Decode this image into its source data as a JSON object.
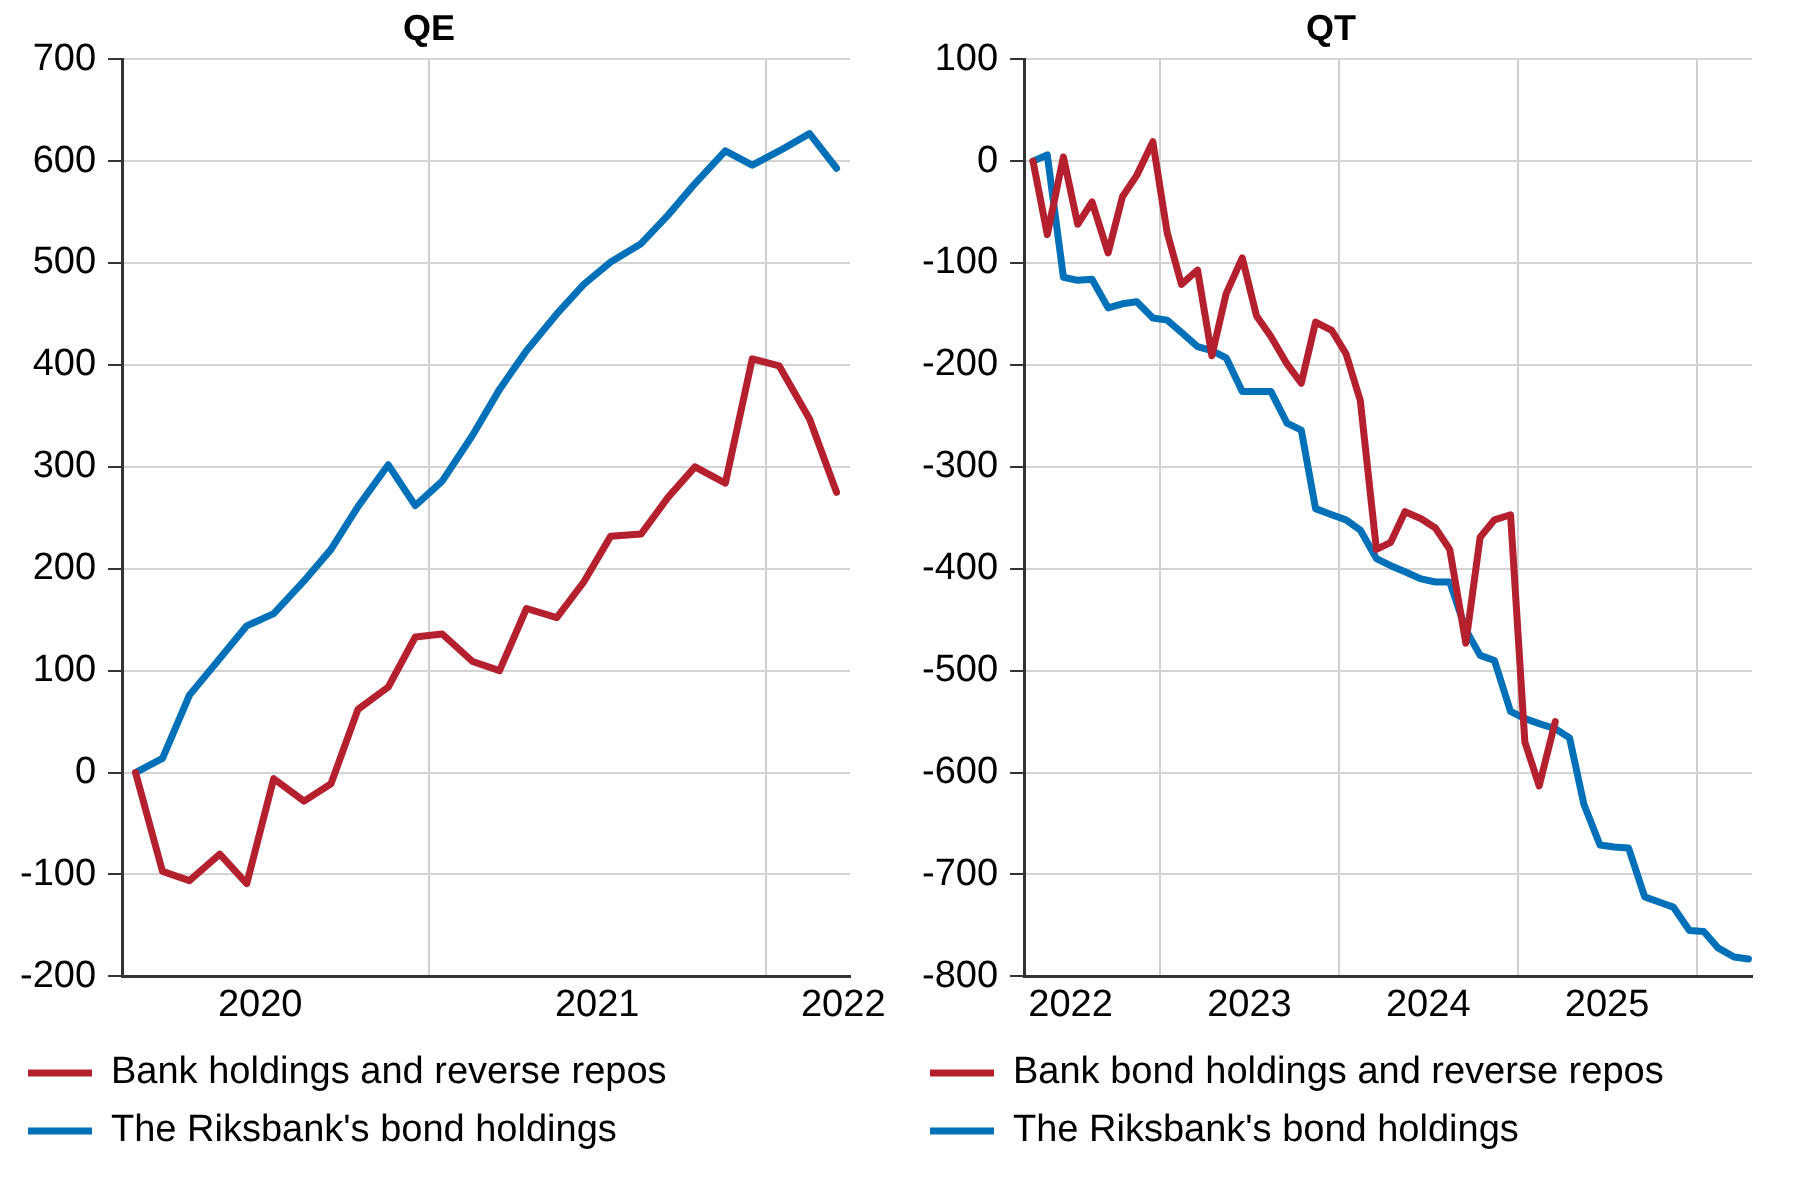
{
  "chart_data": [
    {
      "type": "line",
      "title": "QE",
      "xlim": [
        2020.09,
        2022.25
      ],
      "xticks": [
        {
          "value": 2020.5,
          "label": "2020"
        },
        {
          "value": 2021,
          "label": null
        },
        {
          "value": 2021.5,
          "label": "2021"
        },
        {
          "value": 2022,
          "label": null
        },
        {
          "value": 2022.23,
          "label": "2022"
        }
      ],
      "ylim": [
        -200,
        700
      ],
      "yticks": [
        -200,
        -100,
        0,
        100,
        200,
        300,
        400,
        500,
        600,
        700
      ],
      "grid": true,
      "legend": "bottom",
      "marker": "none",
      "line_style": "solid",
      "series": [
        {
          "name": "Bank holdings and reverse repos",
          "color": "#b5202e",
          "x": [
            2020.13,
            2020.21,
            2020.29,
            2020.38,
            2020.46,
            2020.54,
            2020.63,
            2020.71,
            2020.79,
            2020.88,
            2020.96,
            2021.04,
            2021.13,
            2021.21,
            2021.29,
            2021.38,
            2021.46,
            2021.54,
            2021.63,
            2021.71,
            2021.79,
            2021.88,
            2021.96,
            2022.04,
            2022.13,
            2022.21
          ],
          "values": [
            0,
            -97,
            -106,
            -80,
            -109,
            -6,
            -28,
            -11,
            62,
            84,
            133,
            136,
            109,
            100,
            161,
            152,
            187,
            232,
            234,
            270,
            300,
            284,
            406,
            399,
            347,
            275
          ]
        },
        {
          "name": "The Riksbank's bond holdings",
          "color": "#0070b8",
          "x": [
            2020.13,
            2020.21,
            2020.29,
            2020.38,
            2020.46,
            2020.54,
            2020.63,
            2020.71,
            2020.79,
            2020.88,
            2020.96,
            2021.04,
            2021.13,
            2021.21,
            2021.29,
            2021.38,
            2021.46,
            2021.54,
            2021.63,
            2021.71,
            2021.79,
            2021.88,
            2021.96,
            2022.04,
            2022.13,
            2022.21
          ],
          "values": [
            0,
            14,
            76,
            112,
            144,
            156,
            188,
            219,
            261,
            302,
            262,
            286,
            331,
            376,
            414,
            450,
            479,
            501,
            519,
            547,
            578,
            610,
            596,
            610,
            627,
            593
          ]
        }
      ]
    },
    {
      "type": "line",
      "title": "QT",
      "xlim": [
        2022.24,
        2026.31
      ],
      "xticks": [
        {
          "value": 2022.5,
          "label": "2022"
        },
        {
          "value": 2023,
          "label": null
        },
        {
          "value": 2023.5,
          "label": "2023"
        },
        {
          "value": 2024,
          "label": null
        },
        {
          "value": 2024.5,
          "label": "2024"
        },
        {
          "value": 2025,
          "label": null
        },
        {
          "value": 2025.5,
          "label": "2025"
        },
        {
          "value": 2026,
          "label": null
        }
      ],
      "ylim": [
        -800,
        100
      ],
      "yticks": [
        -800,
        -700,
        -600,
        -500,
        -400,
        -300,
        -200,
        -100,
        0,
        100
      ],
      "grid": true,
      "legend": "bottom",
      "marker": "none",
      "line_style": "solid",
      "series": [
        {
          "name": "Bank bond holdings and reverse repos",
          "color": "#b5202e",
          "x": [
            2022.29,
            2022.37,
            2022.46,
            2022.54,
            2022.62,
            2022.71,
            2022.79,
            2022.87,
            2022.96,
            2023.04,
            2023.12,
            2023.21,
            2023.29,
            2023.37,
            2023.46,
            2023.54,
            2023.62,
            2023.71,
            2023.79,
            2023.87,
            2023.96,
            2024.04,
            2024.12,
            2024.21,
            2024.29,
            2024.37,
            2024.46,
            2024.54,
            2024.62,
            2024.71,
            2024.79,
            2024.87,
            2024.96,
            2025.04,
            2025.12,
            2025.21
          ],
          "values": [
            0,
            -72,
            4,
            -62,
            -40,
            -90,
            -35,
            -14,
            19,
            -70,
            -121,
            -107,
            -191,
            -130,
            -95,
            -152,
            -172,
            -199,
            -218,
            -158,
            -166,
            -189,
            -235,
            -381,
            -374,
            -344,
            -351,
            -360,
            -381,
            -473,
            -369,
            -352,
            -347,
            -570,
            -613,
            -550
          ]
        },
        {
          "name": "The Riksbank's bond holdings",
          "color": "#0070b8",
          "x": [
            2022.29,
            2022.37,
            2022.46,
            2022.54,
            2022.62,
            2022.71,
            2022.79,
            2022.87,
            2022.96,
            2023.04,
            2023.12,
            2023.21,
            2023.29,
            2023.37,
            2023.46,
            2023.54,
            2023.62,
            2023.71,
            2023.79,
            2023.87,
            2023.96,
            2024.04,
            2024.12,
            2024.21,
            2024.29,
            2024.37,
            2024.46,
            2024.54,
            2024.62,
            2024.71,
            2024.79,
            2024.87,
            2024.96,
            2025.04,
            2025.12,
            2025.21,
            2025.29,
            2025.37,
            2025.46,
            2025.54,
            2025.62,
            2025.71,
            2025.79,
            2025.87,
            2025.96,
            2026.04,
            2026.12,
            2026.21,
            2026.29
          ],
          "values": [
            0,
            6,
            -114,
            -117,
            -116,
            -144,
            -140,
            -138,
            -154,
            -156,
            -168,
            -182,
            -186,
            -193,
            -226,
            -226,
            -226,
            -257,
            -264,
            -341,
            -347,
            -352,
            -362,
            -390,
            -397,
            -403,
            -410,
            -413,
            -413,
            -460,
            -485,
            -490,
            -540,
            -547,
            -552,
            -557,
            -566,
            -631,
            -671,
            -673,
            -674,
            -722,
            -727,
            -732,
            -755,
            -756,
            -772,
            -781,
            -783
          ]
        }
      ]
    }
  ]
}
